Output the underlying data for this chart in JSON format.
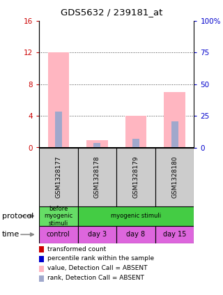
{
  "title": "GDS5632 / 239181_at",
  "samples": [
    "GSM1328177",
    "GSM1328178",
    "GSM1328179",
    "GSM1328180"
  ],
  "bar_values_pink": [
    12.0,
    0.9,
    4.0,
    7.0
  ],
  "bar_values_blue": [
    4.5,
    0.6,
    1.1,
    3.3
  ],
  "ylim_left": [
    0,
    16
  ],
  "ylim_right": [
    0,
    100
  ],
  "yticks_left": [
    0,
    4,
    8,
    12,
    16
  ],
  "yticks_right": [
    0,
    25,
    50,
    75,
    100
  ],
  "ytick_labels_right": [
    "0",
    "25",
    "50",
    "75",
    "100%"
  ],
  "protocol_labels": [
    "before\nmyogenic\nstimuli",
    "myogenic stimuli"
  ],
  "protocol_colors": [
    "#66dd66",
    "#44cc44"
  ],
  "time_labels": [
    "control",
    "day 3",
    "day 8",
    "day 15"
  ],
  "time_color": "#dd66dd",
  "sample_bg_color": "#cccccc",
  "bar_pink": "#ffb6c1",
  "bar_blue": "#a0a8cc",
  "legend_red": "#cc0000",
  "legend_blue": "#0000cc",
  "legend_pink": "#ffb6c1",
  "legend_lblue": "#a0a8cc",
  "left_tick_color": "#cc0000",
  "right_tick_color": "#0000cc",
  "dotted_color": "#444444",
  "bg_color": "#ffffff"
}
